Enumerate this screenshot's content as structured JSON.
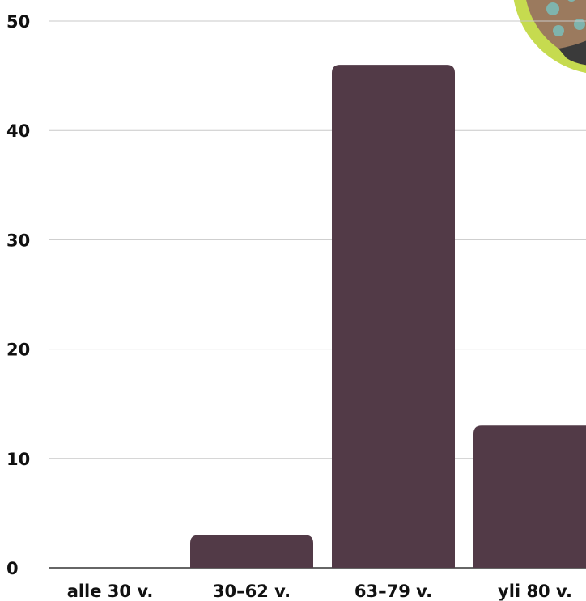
{
  "colors": {
    "bar": "#523a47",
    "grid": "#c8c8c8",
    "baseline": "#333333",
    "text": "#111111",
    "badge_ring": "#c6db4f",
    "badge_fill": "#9b7a5e",
    "badge_dots": "#7fb4ad",
    "badge_dark": "#3a3a3a"
  },
  "decoration": {
    "icon": "dotted-badge-icon"
  },
  "chart_data": {
    "type": "bar",
    "categories": [
      "alle 30 v.",
      "30–62 v.",
      "63–79 v.",
      "yli 80 v."
    ],
    "values": [
      0,
      3,
      46,
      13
    ],
    "ylim": [
      0,
      50
    ],
    "yticks": [
      "0",
      "10",
      "20",
      "30",
      "40",
      "50"
    ],
    "grid": true,
    "legend": "none"
  }
}
